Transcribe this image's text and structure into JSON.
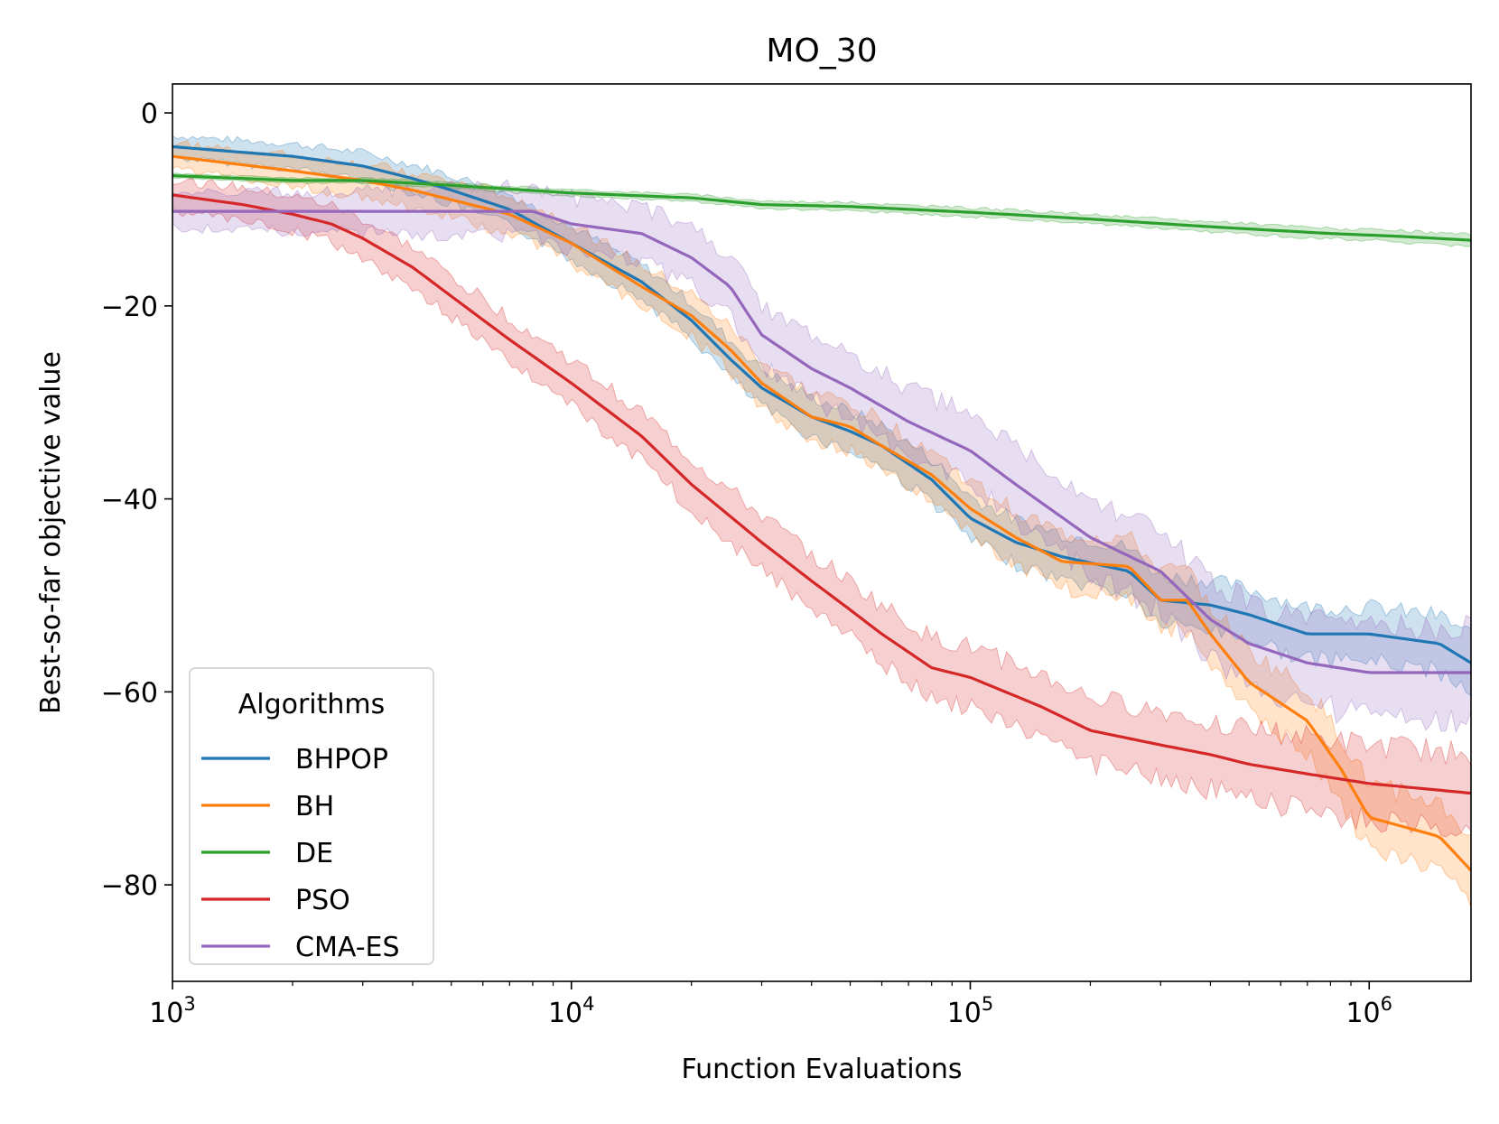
{
  "chart_data": {
    "type": "line",
    "title": "MO_30",
    "xlabel": "Function Evaluations",
    "ylabel": "Best-so-far objective value",
    "xscale": "log",
    "xlim": [
      1000,
      1800000
    ],
    "ylim": [
      -90,
      3
    ],
    "yticks": [
      0,
      -20,
      -40,
      -60,
      -80
    ],
    "ytick_labels": [
      "0",
      "−20",
      "−40",
      "−60",
      "−80"
    ],
    "xticks": [
      1000,
      10000,
      100000,
      1000000
    ],
    "xtick_labels": [
      {
        "base": "10",
        "exp": "3"
      },
      {
        "base": "10",
        "exp": "4"
      },
      {
        "base": "10",
        "exp": "5"
      },
      {
        "base": "10",
        "exp": "6"
      }
    ],
    "legend": {
      "title": "Algorithms",
      "position": "lower-left"
    },
    "series": [
      {
        "name": "BHPOP",
        "color": "#1f77b4",
        "x": [
          1000,
          2000,
          3000,
          4000,
          5000,
          7000,
          10000,
          15000,
          20000,
          25000,
          30000,
          40000,
          50000,
          60000,
          80000,
          100000,
          130000,
          170000,
          250000,
          300000,
          400000,
          500000,
          700000,
          1000000,
          1500000,
          1800000
        ],
        "y": [
          -3.5,
          -4.5,
          -5.5,
          -6.8,
          -8.0,
          -10.0,
          -13.5,
          -17.5,
          -21.5,
          -25.5,
          -28.5,
          -31.5,
          -33.0,
          -34.5,
          -38.0,
          -42.0,
          -44.5,
          -46.0,
          -47.5,
          -50.5,
          -51.0,
          -52.0,
          -54.0,
          -54.0,
          -55.0,
          -57.0
        ],
        "band": 2.5
      },
      {
        "name": "BH",
        "color": "#ff7f0e",
        "x": [
          1000,
          2000,
          3000,
          4000,
          5000,
          7000,
          10000,
          15000,
          20000,
          25000,
          30000,
          40000,
          50000,
          60000,
          80000,
          100000,
          130000,
          170000,
          250000,
          300000,
          350000,
          400000,
          500000,
          700000,
          850000,
          1000000,
          1500000,
          1800000
        ],
        "y": [
          -4.5,
          -6.0,
          -7.0,
          -8.0,
          -9.0,
          -10.5,
          -13.5,
          -18.0,
          -21.0,
          -24.5,
          -28.0,
          -31.5,
          -32.5,
          -34.5,
          -37.5,
          -41.0,
          -44.0,
          -46.5,
          -47.0,
          -50.5,
          -50.5,
          -54.0,
          -59.0,
          -63.0,
          -68.0,
          -73.0,
          -75.0,
          -78.5
        ],
        "band": 3.0
      },
      {
        "name": "DE",
        "color": "#2ca02c",
        "x": [
          1000,
          2000,
          3000,
          5000,
          10000,
          20000,
          30000,
          50000,
          100000,
          200000,
          400000,
          800000,
          1200000,
          1800000
        ],
        "y": [
          -6.5,
          -7.0,
          -7.0,
          -7.5,
          -8.3,
          -8.8,
          -9.5,
          -9.7,
          -10.3,
          -11.0,
          -11.8,
          -12.5,
          -12.8,
          -13.2
        ],
        "band": 0.5
      },
      {
        "name": "PSO",
        "color": "#d62728",
        "x": [
          1000,
          1500,
          2000,
          2500,
          3000,
          4000,
          5000,
          7000,
          10000,
          15000,
          20000,
          30000,
          40000,
          50000,
          60000,
          80000,
          100000,
          150000,
          200000,
          300000,
          400000,
          500000,
          700000,
          1000000,
          1800000
        ],
        "y": [
          -8.5,
          -9.5,
          -10.5,
          -11.5,
          -13.0,
          -16.0,
          -19.0,
          -23.5,
          -28.0,
          -33.5,
          -38.5,
          -44.5,
          -48.5,
          -51.5,
          -54.0,
          -57.5,
          -58.5,
          -61.5,
          -64.0,
          -65.5,
          -66.5,
          -67.5,
          -68.5,
          -69.5,
          -70.5
        ],
        "band": 3.5
      },
      {
        "name": "CMA-ES",
        "color": "#9467bd",
        "x": [
          1000,
          3000,
          5000,
          8000,
          10000,
          15000,
          20000,
          25000,
          30000,
          40000,
          50000,
          70000,
          100000,
          130000,
          200000,
          300000,
          400000,
          500000,
          700000,
          1000000,
          1800000
        ],
        "y": [
          -10.2,
          -10.2,
          -10.2,
          -10.2,
          -11.5,
          -12.5,
          -15.0,
          -18.0,
          -23.0,
          -26.5,
          -28.5,
          -32.0,
          -35.0,
          -38.5,
          -44.0,
          -47.5,
          -52.5,
          -55.0,
          -57.0,
          -58.0,
          -58.0
        ],
        "band": 4.0
      }
    ]
  }
}
